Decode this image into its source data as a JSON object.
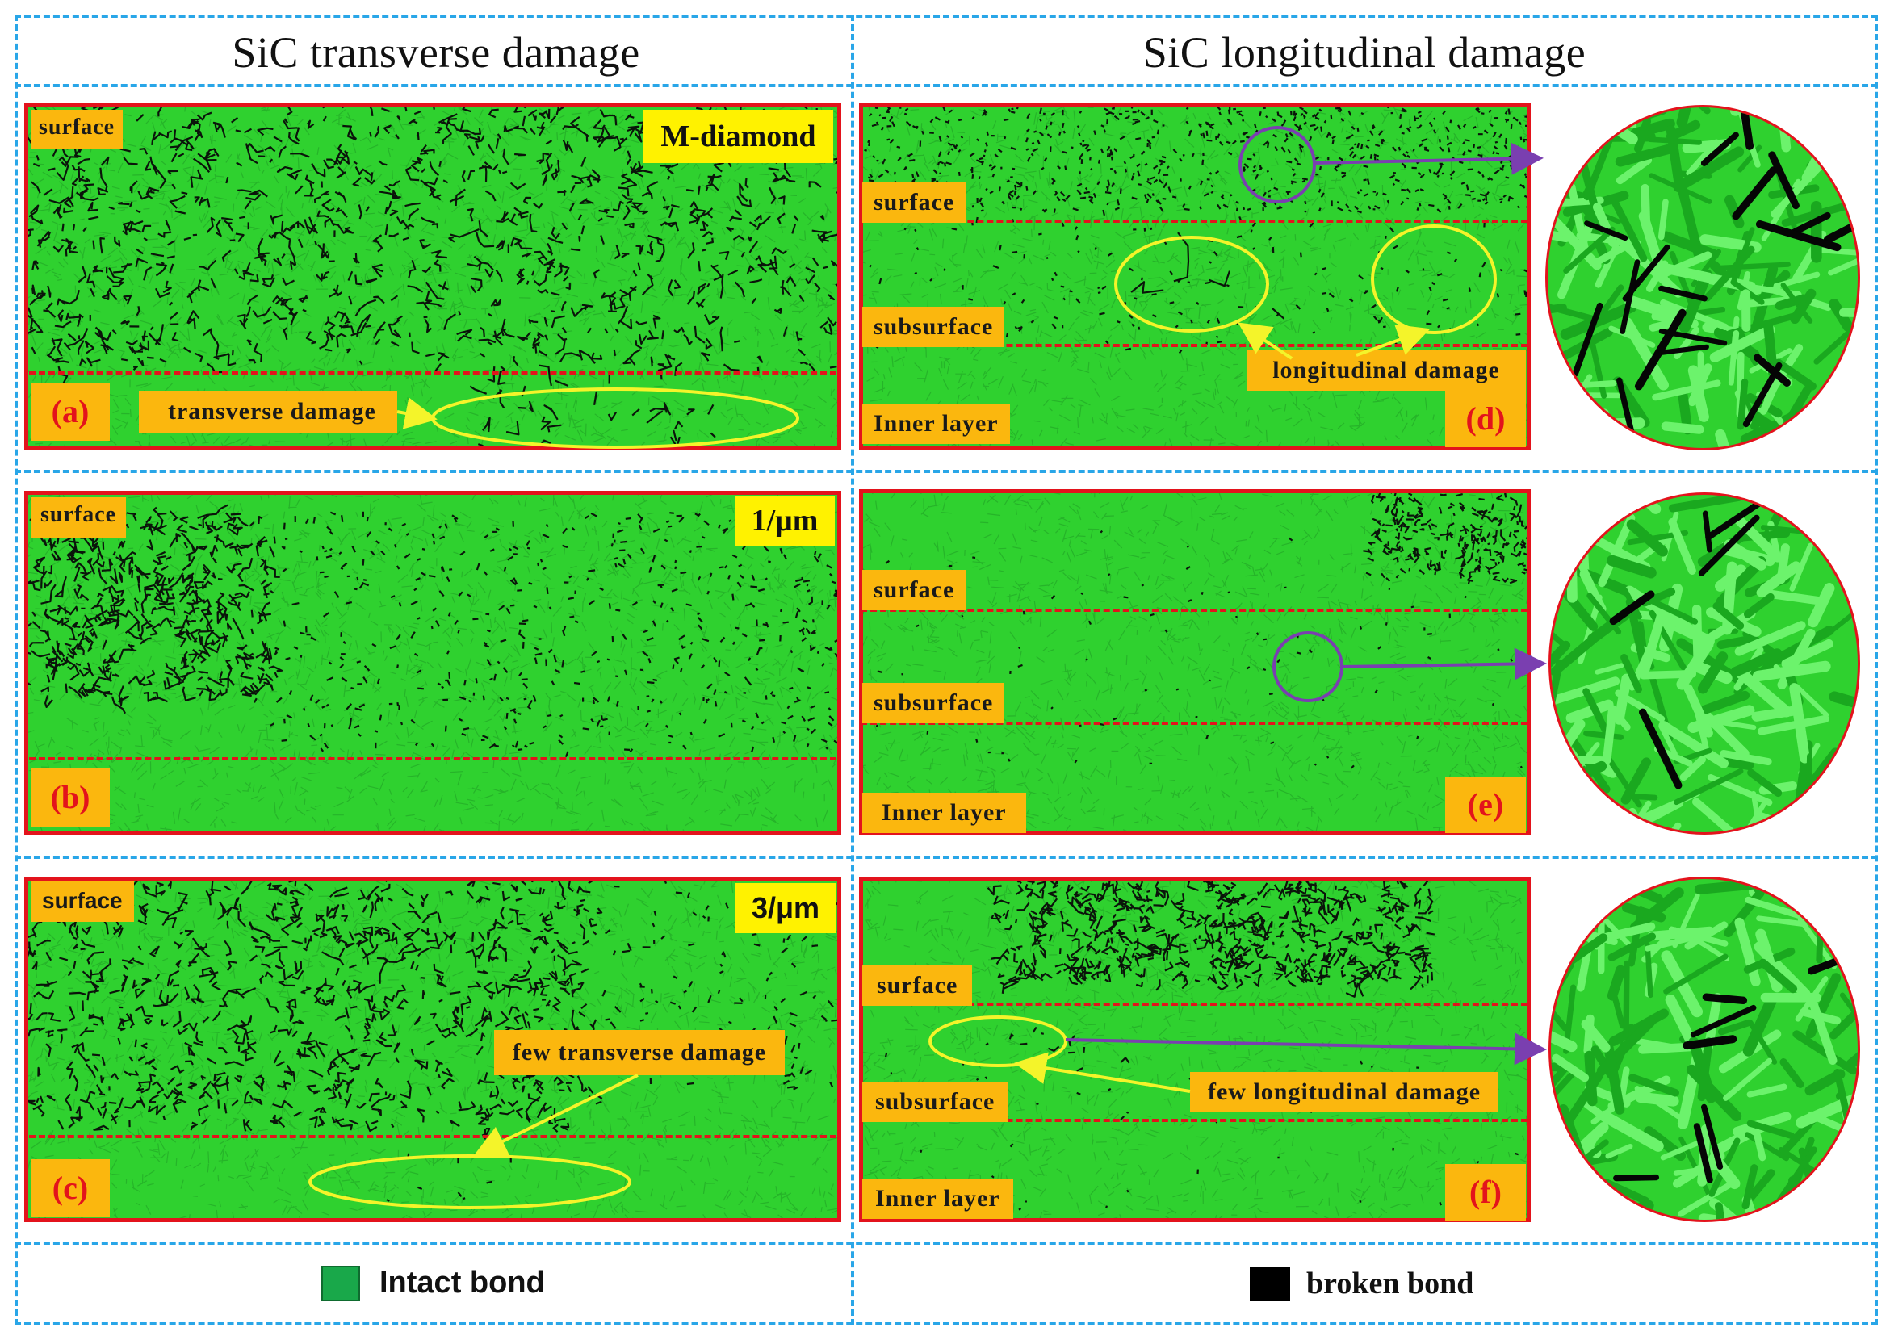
{
  "titles": {
    "left": "SiC transverse damage",
    "right": "SiC longitudinal damage"
  },
  "labels": {
    "surface": "surface",
    "subsurface": "subsurface",
    "inner_layer": "Inner layer"
  },
  "panels": {
    "a": {
      "letter": "(a)",
      "tag": "M-diamond",
      "annotation": "transverse damage"
    },
    "b": {
      "letter": "(b)",
      "tag": "1/μm"
    },
    "c": {
      "letter": "(c)",
      "tag": "3/μm",
      "annotation": "few transverse damage"
    },
    "d": {
      "letter": "(d)",
      "annotation": "longitudinal damage"
    },
    "e": {
      "letter": "(e)"
    },
    "f": {
      "letter": "(f)",
      "annotation": "few longitudinal damage"
    }
  },
  "legend": {
    "intact": {
      "label": "Intact bond",
      "color": "#19a84a"
    },
    "broken": {
      "label": "broken bond",
      "color": "#000000"
    }
  },
  "colors": {
    "background_green": "#2fd12f",
    "frame_border": "#e3131c",
    "label_bg": "#fbb70e",
    "tag_bg": "#fff200",
    "ellipse": "#f4f42a",
    "arrow_purple": "#7a3fb0",
    "divider_blue": "#29a6e8"
  }
}
